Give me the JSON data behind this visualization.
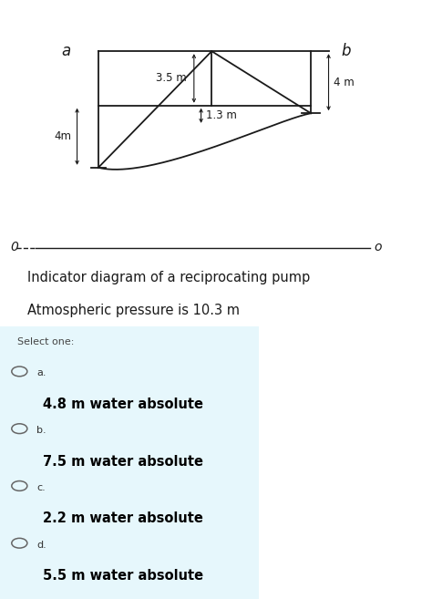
{
  "bg_color": "#ffffff",
  "title_line1": "Indicator diagram of a reciprocating pump",
  "title_line2": "Atmospheric pressure is 10.3 m",
  "label_a": "a",
  "label_b": "b",
  "label_0_left": "0",
  "label_0_right": "o",
  "label_4m_left": "4m",
  "label_35m": "3.5 m",
  "label_4m_right": "4 m",
  "label_13m": "1.3 m",
  "select_one": "Select one:",
  "options": [
    {
      "letter": "a.",
      "text": "4.8 m water absolute"
    },
    {
      "letter": "b.",
      "text": "7.5 m water absolute"
    },
    {
      "letter": "c.",
      "text": "2.2 m water absolute"
    },
    {
      "letter": "d.",
      "text": "5.5 m water absolute"
    }
  ],
  "diagram_color": "#1a1a1a",
  "text_color": "#1a1a1a",
  "option_text_color": "#000000",
  "select_color": "#333333",
  "light_blue_bg": "#e6f7fc",
  "dark_bg": "#3a3a3a"
}
